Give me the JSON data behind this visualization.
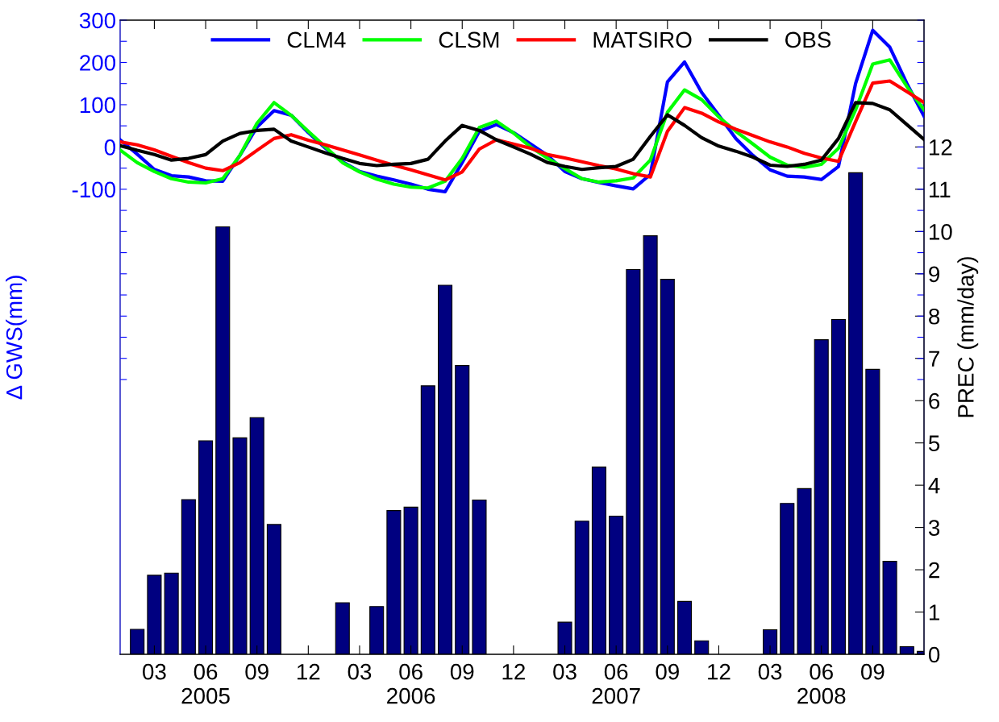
{
  "chart_data": {
    "type": "line",
    "ylabel": "Δ GWS(mm)",
    "y2label": "PREC (mm/day)",
    "x": [
      "2005-01",
      "2005-02",
      "2005-03",
      "2005-04",
      "2005-05",
      "2005-06",
      "2005-07",
      "2005-08",
      "2005-09",
      "2005-10",
      "2005-11",
      "2005-12",
      "2006-01",
      "2006-02",
      "2006-03",
      "2006-04",
      "2006-05",
      "2006-06",
      "2006-07",
      "2006-08",
      "2006-09",
      "2006-10",
      "2006-11",
      "2006-12",
      "2007-01",
      "2007-02",
      "2007-03",
      "2007-04",
      "2007-05",
      "2007-06",
      "2007-07",
      "2007-08",
      "2007-09",
      "2007-10",
      "2007-11",
      "2007-12",
      "2008-01",
      "2008-02",
      "2008-03",
      "2008-04",
      "2008-05",
      "2008-06",
      "2008-07",
      "2008-08",
      "2008-09",
      "2008-10",
      "2008-11",
      "2008-12"
    ],
    "xlim": [
      "2005-01",
      "2008-12"
    ],
    "xticks": [
      {
        "value": "2005-03",
        "label": "03"
      },
      {
        "value": "2005-06",
        "label": "06\n2005"
      },
      {
        "value": "2005-09",
        "label": "09"
      },
      {
        "value": "2005-12",
        "label": "12"
      },
      {
        "value": "2006-03",
        "label": "03"
      },
      {
        "value": "2006-06",
        "label": "06\n2006"
      },
      {
        "value": "2006-09",
        "label": "09"
      },
      {
        "value": "2006-12",
        "label": "12"
      },
      {
        "value": "2007-03",
        "label": "03"
      },
      {
        "value": "2007-06",
        "label": "06\n2007"
      },
      {
        "value": "2007-09",
        "label": "09"
      },
      {
        "value": "2007-12",
        "label": "12"
      },
      {
        "value": "2008-03",
        "label": "03"
      },
      {
        "value": "2008-06",
        "label": "06\n2008"
      },
      {
        "value": "2008-09",
        "label": "09"
      }
    ],
    "ylim": [
      -1200,
      300
    ],
    "yticks": [
      {
        "value": -550,
        "label": null
      },
      {
        "value": -500,
        "label": null
      },
      {
        "value": -450,
        "label": null
      },
      {
        "value": -400,
        "label": null
      },
      {
        "value": -350,
        "label": null
      },
      {
        "value": -300,
        "label": null
      },
      {
        "value": -250,
        "label": null
      },
      {
        "value": -200,
        "label": null
      },
      {
        "value": -150,
        "label": null
      },
      -100,
      {
        "value": -50,
        "label": null
      },
      0,
      {
        "value": 50,
        "label": null
      },
      100,
      {
        "value": 150,
        "label": null
      },
      200,
      {
        "value": 250,
        "label": null
      },
      300
    ],
    "y2lim": [
      0,
      15
    ],
    "y2ticks": [
      0,
      1,
      2,
      3,
      4,
      5,
      6,
      7,
      8,
      9,
      10,
      11,
      12
    ],
    "legend": "top",
    "series": [
      {
        "type": "bar",
        "axis": "y2",
        "color": "#000080",
        "values": [
          null,
          0.59,
          1.87,
          1.92,
          3.66,
          5.05,
          10.11,
          5.12,
          5.6,
          3.07,
          null,
          null,
          null,
          1.22,
          null,
          1.13,
          3.4,
          3.48,
          6.35,
          8.73,
          6.83,
          3.65,
          null,
          null,
          null,
          null,
          0.76,
          3.15,
          4.43,
          3.27,
          9.1,
          9.9,
          8.87,
          1.25,
          0.32,
          null,
          null,
          null,
          0.58,
          3.57,
          3.92,
          7.44,
          7.92,
          11.39,
          6.74,
          2.2,
          0.18,
          0.07
        ]
      },
      {
        "name": "CLM4",
        "color": "#0000ff",
        "values": [
          17,
          -17,
          -53,
          -68,
          -71,
          -80,
          -81,
          -20,
          47,
          86,
          75,
          34,
          -3,
          -35,
          -58,
          -69,
          -78,
          -88,
          -100,
          -106,
          -37,
          37,
          53,
          34,
          7,
          -20,
          -58,
          -75,
          -84,
          -92,
          -99,
          -65,
          154,
          201,
          129,
          75,
          20,
          -20,
          -54,
          -69,
          -71,
          -77,
          -46,
          150,
          276,
          236,
          150,
          73
        ]
      },
      {
        "name": "CLSM",
        "color": "#00ff00",
        "values": [
          -7,
          -37,
          -58,
          -75,
          -83,
          -85,
          -75,
          -20,
          56,
          105,
          75,
          37,
          0,
          -37,
          -59,
          -76,
          -88,
          -95,
          -97,
          -81,
          -27,
          46,
          61,
          33,
          0,
          -27,
          -51,
          -75,
          -83,
          -80,
          -73,
          -31,
          82,
          135,
          112,
          71,
          37,
          7,
          -24,
          -43,
          -48,
          -41,
          -3,
          88,
          196,
          206,
          143,
          88
        ]
      },
      {
        "name": "MATSIRO",
        "color": "#ff0000",
        "values": [
          12,
          5,
          -7,
          -22,
          -37,
          -50,
          -56,
          -37,
          -8,
          20,
          29,
          16,
          5,
          -7,
          -19,
          -31,
          -43,
          -54,
          -66,
          -78,
          -59,
          -5,
          17,
          7,
          -3,
          -18,
          -26,
          -35,
          -44,
          -52,
          -63,
          -71,
          37,
          93,
          80,
          59,
          42,
          27,
          12,
          0,
          -15,
          -26,
          -34,
          60,
          151,
          156,
          131,
          105
        ]
      },
      {
        "name": "OBS",
        "color": "#000000",
        "values": [
          3,
          -8,
          -18,
          -31,
          -27,
          -18,
          14,
          32,
          39,
          42,
          14,
          0,
          -14,
          -27,
          -39,
          -44,
          -41,
          -39,
          -29,
          14,
          51,
          39,
          17,
          0,
          -17,
          -37,
          -46,
          -53,
          -49,
          -46,
          -29,
          25,
          76,
          51,
          22,
          2,
          -10,
          -24,
          -43,
          -46,
          -41,
          -31,
          20,
          105,
          103,
          88,
          53,
          18
        ]
      }
    ]
  }
}
